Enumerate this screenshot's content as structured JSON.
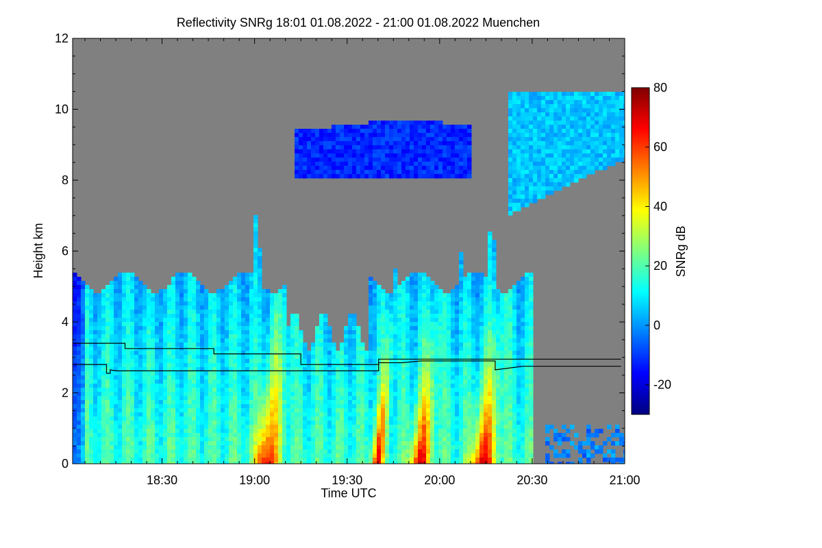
{
  "chart_data": {
    "type": "heatmap",
    "title": "Reflectivity SNRg   18:01 01.08.2022 - 21:00 01.08.2022 Muenchen",
    "xlabel": "Time UTC",
    "ylabel": "Height km",
    "x_range": [
      "18:01",
      "21:00"
    ],
    "x_ticks": [
      "18:30",
      "19:00",
      "19:30",
      "20:00",
      "20:30",
      "21:00"
    ],
    "ylim": [
      0,
      12
    ],
    "y_ticks": [
      "0",
      "2",
      "4",
      "6",
      "8",
      "10",
      "12"
    ],
    "colorbar": {
      "label": "SNRg dB",
      "range": [
        -30,
        80
      ],
      "ticks": [
        "-20",
        "0",
        "20",
        "40",
        "60",
        "80"
      ],
      "colormap": [
        "#00007f",
        "#0000ff",
        "#007fff",
        "#00ffff",
        "#7fff7f",
        "#ffff00",
        "#ff7f00",
        "#ff0000",
        "#7f0000"
      ]
    },
    "background_color": "#808080",
    "lines": [
      {
        "points": [
          [
            18.02,
            3.4
          ],
          [
            18.3,
            3.4
          ],
          [
            18.3,
            3.25
          ],
          [
            18.78,
            3.25
          ],
          [
            18.78,
            3.1
          ],
          [
            19.25,
            3.1
          ],
          [
            19.25,
            2.8
          ],
          [
            19.67,
            2.8
          ],
          [
            19.67,
            2.95
          ],
          [
            20.98,
            2.95
          ]
        ]
      },
      {
        "points": [
          [
            18.02,
            2.8
          ],
          [
            18.2,
            2.8
          ],
          [
            18.2,
            2.55
          ],
          [
            18.22,
            2.55
          ],
          [
            18.22,
            2.65
          ],
          [
            18.25,
            2.62
          ],
          [
            19.67,
            2.62
          ],
          [
            19.67,
            2.85
          ],
          [
            19.8,
            2.85
          ],
          [
            19.9,
            2.9
          ],
          [
            19.97,
            2.9
          ],
          [
            20.3,
            2.9
          ],
          [
            20.3,
            2.65
          ],
          [
            20.45,
            2.75
          ],
          [
            20.98,
            2.75
          ]
        ]
      }
    ]
  }
}
